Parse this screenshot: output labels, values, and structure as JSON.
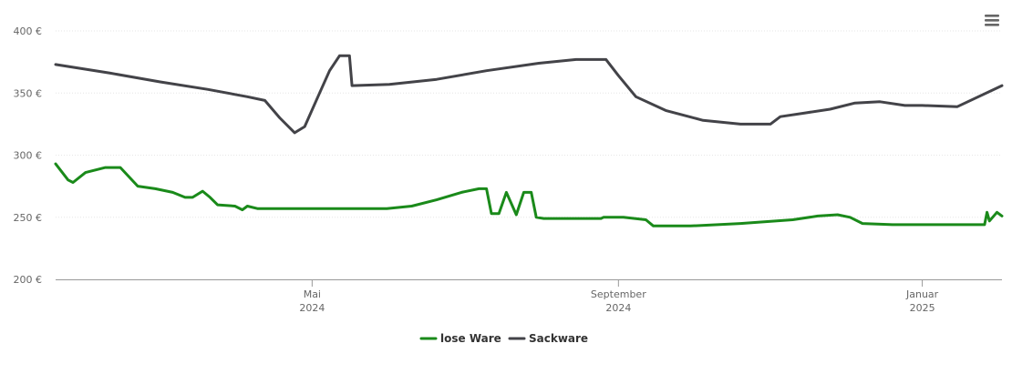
{
  "chart_data": {
    "type": "line",
    "title": "",
    "xlabel": "",
    "ylabel": "",
    "ylim": [
      200,
      400
    ],
    "y_ticks": [
      {
        "value": 200,
        "label": "200 €"
      },
      {
        "value": 250,
        "label": "250 €"
      },
      {
        "value": 300,
        "label": "300 €"
      },
      {
        "value": 350,
        "label": "350 €"
      },
      {
        "value": 400,
        "label": "400 €"
      }
    ],
    "xlim": [
      "2024-01-19",
      "2025-02-02"
    ],
    "x_ticks": [
      {
        "date": "2024-05-01",
        "month": "Mai",
        "year": "2024"
      },
      {
        "date": "2024-09-01",
        "month": "September",
        "year": "2024"
      },
      {
        "date": "2025-01-01",
        "month": "Januar",
        "year": "2025"
      }
    ],
    "grid": "horizontal",
    "legend_position": "bottom-center",
    "series": [
      {
        "name": "lose Ware",
        "color": "#1a8a1a",
        "points": [
          [
            "2024-01-19",
            293
          ],
          [
            "2024-01-24",
            280
          ],
          [
            "2024-01-26",
            278
          ],
          [
            "2024-01-31",
            286
          ],
          [
            "2024-02-08",
            290
          ],
          [
            "2024-02-14",
            290
          ],
          [
            "2024-02-21",
            275
          ],
          [
            "2024-02-28",
            273
          ],
          [
            "2024-03-06",
            270
          ],
          [
            "2024-03-11",
            266
          ],
          [
            "2024-03-14",
            266
          ],
          [
            "2024-03-18",
            271
          ],
          [
            "2024-03-21",
            266
          ],
          [
            "2024-03-24",
            260
          ],
          [
            "2024-03-31",
            259
          ],
          [
            "2024-04-03",
            256
          ],
          [
            "2024-04-05",
            259
          ],
          [
            "2024-04-09",
            257
          ],
          [
            "2024-04-30",
            257
          ],
          [
            "2024-05-31",
            257
          ],
          [
            "2024-06-10",
            259
          ],
          [
            "2024-06-20",
            264
          ],
          [
            "2024-06-30",
            270
          ],
          [
            "2024-07-07",
            273
          ],
          [
            "2024-07-10",
            273
          ],
          [
            "2024-07-12",
            253
          ],
          [
            "2024-07-15",
            253
          ],
          [
            "2024-07-18",
            270
          ],
          [
            "2024-07-22",
            252
          ],
          [
            "2024-07-25",
            270
          ],
          [
            "2024-07-28",
            270
          ],
          [
            "2024-07-30",
            250
          ],
          [
            "2024-08-02",
            249
          ],
          [
            "2024-08-25",
            249
          ],
          [
            "2024-08-26",
            250
          ],
          [
            "2024-09-03",
            250
          ],
          [
            "2024-09-12",
            248
          ],
          [
            "2024-09-15",
            243
          ],
          [
            "2024-09-30",
            243
          ],
          [
            "2024-10-20",
            245
          ],
          [
            "2024-11-10",
            248
          ],
          [
            "2024-11-20",
            251
          ],
          [
            "2024-11-28",
            252
          ],
          [
            "2024-12-03",
            250
          ],
          [
            "2024-12-08",
            245
          ],
          [
            "2024-12-20",
            244
          ],
          [
            "2025-01-01",
            244
          ],
          [
            "2025-01-24",
            244
          ],
          [
            "2025-01-26",
            244
          ],
          [
            "2025-01-27",
            254
          ],
          [
            "2025-01-28",
            247
          ],
          [
            "2025-01-31",
            254
          ],
          [
            "2025-02-02",
            251
          ]
        ]
      },
      {
        "name": "Sackware",
        "color": "#434348",
        "points": [
          [
            "2024-01-19",
            373
          ],
          [
            "2024-02-10",
            366
          ],
          [
            "2024-03-01",
            359
          ],
          [
            "2024-03-20",
            353
          ],
          [
            "2024-04-05",
            347
          ],
          [
            "2024-04-12",
            344
          ],
          [
            "2024-04-18",
            330
          ],
          [
            "2024-04-24",
            318
          ],
          [
            "2024-04-28",
            323
          ],
          [
            "2024-05-04",
            350
          ],
          [
            "2024-05-08",
            368
          ],
          [
            "2024-05-12",
            380
          ],
          [
            "2024-05-16",
            380
          ],
          [
            "2024-05-17",
            356
          ],
          [
            "2024-06-01",
            357
          ],
          [
            "2024-06-20",
            361
          ],
          [
            "2024-07-10",
            368
          ],
          [
            "2024-07-31",
            374
          ],
          [
            "2024-08-15",
            377
          ],
          [
            "2024-08-24",
            377
          ],
          [
            "2024-08-27",
            377
          ],
          [
            "2024-09-01",
            364
          ],
          [
            "2024-09-08",
            347
          ],
          [
            "2024-09-20",
            336
          ],
          [
            "2024-10-05",
            328
          ],
          [
            "2024-10-20",
            325
          ],
          [
            "2024-11-01",
            325
          ],
          [
            "2024-11-05",
            331
          ],
          [
            "2024-11-15",
            334
          ],
          [
            "2024-11-25",
            337
          ],
          [
            "2024-12-05",
            342
          ],
          [
            "2024-12-15",
            343
          ],
          [
            "2024-12-25",
            340
          ],
          [
            "2025-01-01",
            340
          ],
          [
            "2025-01-15",
            339
          ],
          [
            "2025-02-02",
            356
          ]
        ]
      }
    ]
  },
  "menu": {
    "icon": "hamburger-menu-icon"
  }
}
